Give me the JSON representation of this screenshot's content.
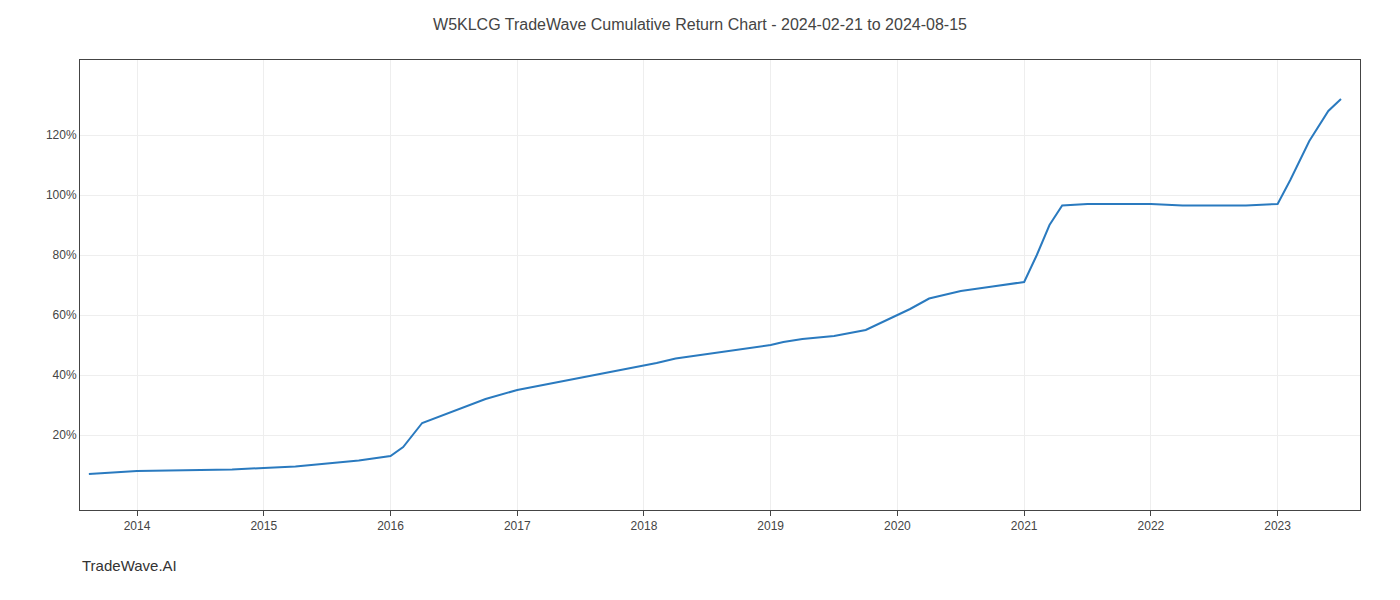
{
  "chart_data": {
    "type": "line",
    "title": "W5KLCG TradeWave Cumulative Return Chart - 2024-02-21 to 2024-08-15",
    "annotations": [
      "TradeWave.AI"
    ],
    "x": [
      2013.62,
      2014.0,
      2014.25,
      2014.5,
      2014.75,
      2015.0,
      2015.25,
      2015.5,
      2015.75,
      2016.0,
      2016.1,
      2016.25,
      2016.5,
      2016.75,
      2017.0,
      2017.25,
      2017.5,
      2017.75,
      2018.0,
      2018.1,
      2018.25,
      2018.5,
      2018.75,
      2019.0,
      2019.1,
      2019.25,
      2019.5,
      2019.75,
      2020.0,
      2020.1,
      2020.25,
      2020.5,
      2020.75,
      2021.0,
      2021.1,
      2021.2,
      2021.3,
      2021.5,
      2021.75,
      2022.0,
      2022.25,
      2022.4,
      2022.5,
      2022.75,
      2023.0,
      2023.1,
      2023.25,
      2023.4,
      2023.5
    ],
    "values": [
      7.0,
      8.0,
      8.2,
      8.3,
      8.5,
      9.0,
      9.5,
      10.5,
      11.5,
      13.0,
      16.0,
      24.0,
      28.0,
      32.0,
      35.0,
      37.0,
      39.0,
      41.0,
      43.0,
      44.0,
      45.5,
      47.0,
      48.5,
      50.0,
      51.0,
      52.0,
      53.0,
      55.0,
      60.0,
      62.0,
      65.5,
      68.0,
      69.5,
      71.0,
      80.0,
      90.0,
      96.5,
      97.0,
      97.0,
      97.0,
      96.5,
      96.5,
      96.5,
      96.5,
      97.0,
      105.0,
      118.0,
      128.0,
      132.0
    ],
    "color": "#2a7abf",
    "xlim": [
      2013.55,
      2023.65
    ],
    "xticks": [
      2014,
      2015,
      2016,
      2017,
      2018,
      2019,
      2020,
      2021,
      2022,
      2023
    ],
    "ylim": [
      -5,
      145
    ],
    "yticks": [
      {
        "value": 20,
        "label": "20%"
      },
      {
        "value": 40,
        "label": "40%"
      },
      {
        "value": 60,
        "label": "60%"
      },
      {
        "value": 80,
        "label": "80%"
      },
      {
        "value": 100,
        "label": "100%"
      },
      {
        "value": 120,
        "label": "120%"
      }
    ],
    "grid": true
  }
}
